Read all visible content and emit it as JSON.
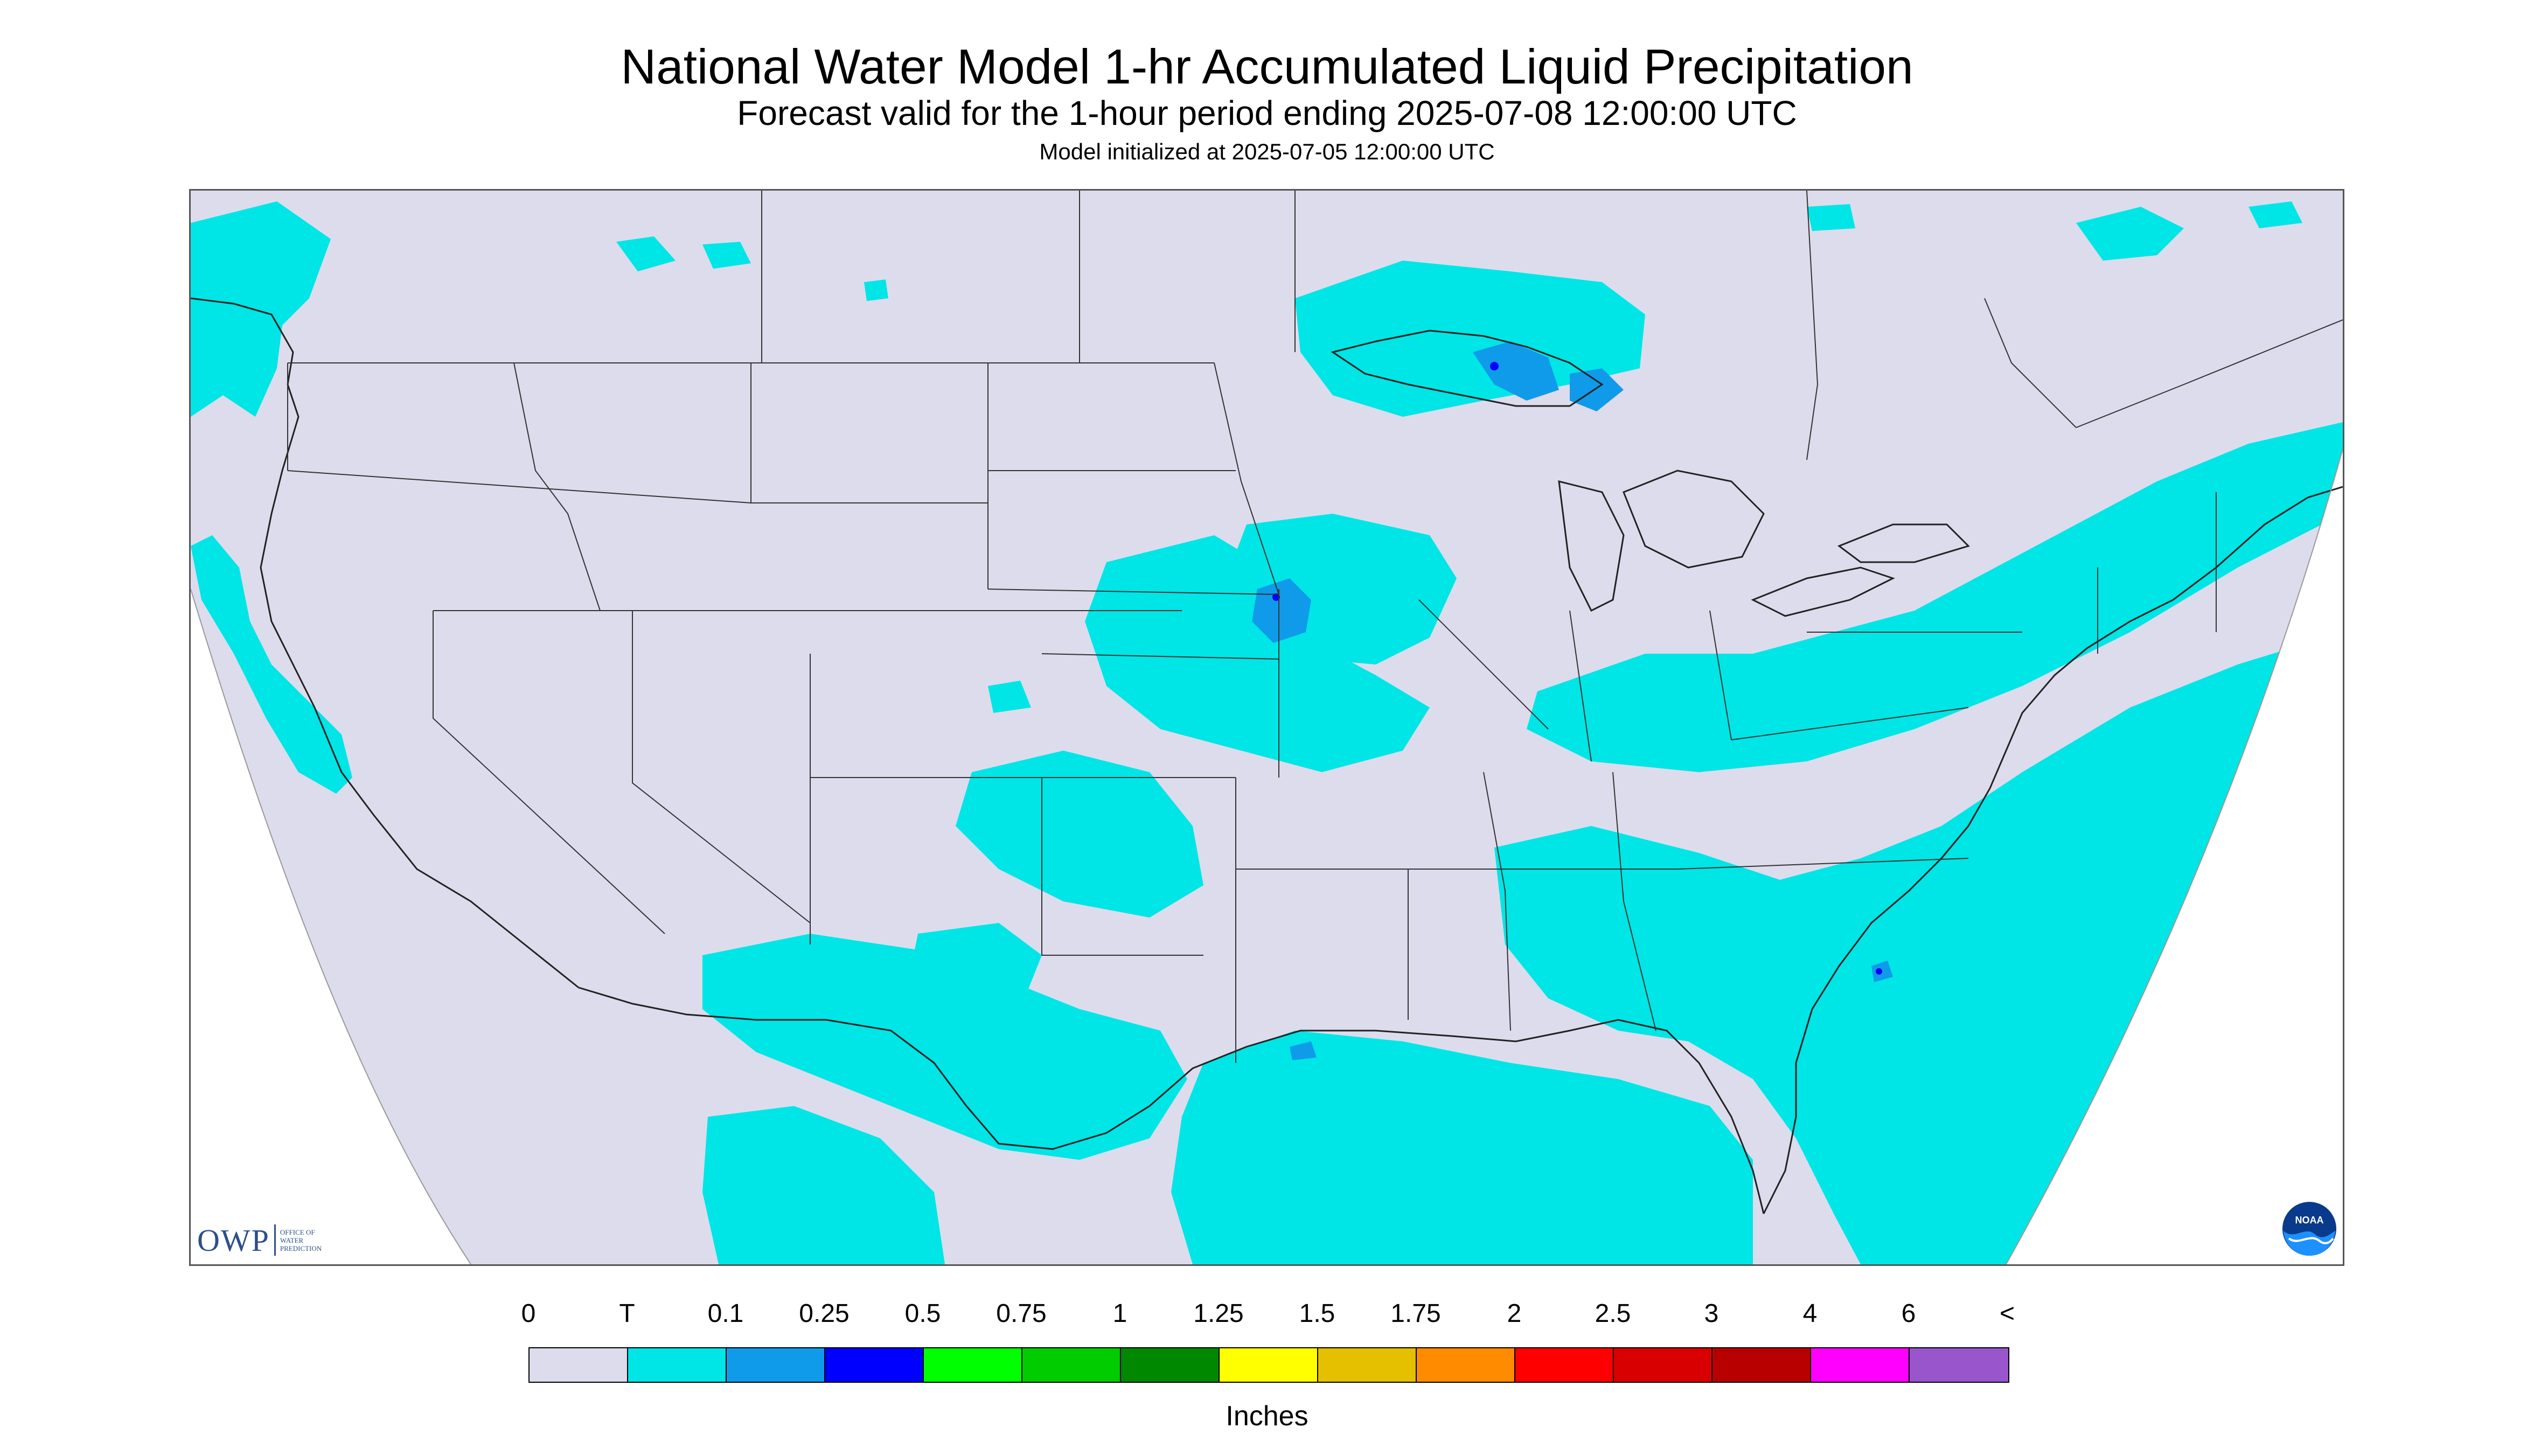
{
  "header": {
    "title": "National Water Model 1-hr Accumulated Liquid Precipitation",
    "subtitle": "Forecast valid for the 1-hour period ending 2025-07-08 12:00:00 UTC",
    "init_line": "Model initialized at 2025-07-05 12:00:00 UTC"
  },
  "logos": {
    "owp": {
      "mark": "OWP",
      "line1": "OFFICE OF",
      "line2": "WATER",
      "line3": "PREDICTION"
    },
    "noaa": {
      "text": "NOAA"
    }
  },
  "legend": {
    "units_label": "Inches",
    "tick_labels": [
      "0",
      "T",
      "0.1",
      "0.25",
      "0.5",
      "0.75",
      "1",
      "1.25",
      "1.5",
      "1.75",
      "2",
      "2.5",
      "3",
      "4",
      "6",
      "<"
    ],
    "bins": [
      {
        "from": "0",
        "to": "T",
        "color": "#dcdced"
      },
      {
        "from": "T",
        "to": "0.1",
        "color": "#00e5e5"
      },
      {
        "from": "0.1",
        "to": "0.25",
        "color": "#0f9bea"
      },
      {
        "from": "0.25",
        "to": "0.5",
        "color": "#0000ff"
      },
      {
        "from": "0.5",
        "to": "0.75",
        "color": "#00ff00"
      },
      {
        "from": "0.75",
        "to": "1",
        "color": "#00cc00"
      },
      {
        "from": "1",
        "to": "1.25",
        "color": "#008800"
      },
      {
        "from": "1.25",
        "to": "1.5",
        "color": "#ffff00"
      },
      {
        "from": "1.5",
        "to": "1.75",
        "color": "#e4c000"
      },
      {
        "from": "1.75",
        "to": "2",
        "color": "#ff8c00"
      },
      {
        "from": "2",
        "to": "2.5",
        "color": "#ff0000"
      },
      {
        "from": "2.5",
        "to": "3",
        "color": "#d80000"
      },
      {
        "from": "3",
        "to": "4",
        "color": "#b80000"
      },
      {
        "from": "4",
        "to": "6",
        "color": "#ff00ff"
      },
      {
        "from": "6",
        "to": "<",
        "color": "#9955cc"
      }
    ]
  },
  "map": {
    "background_color": "#dcdced",
    "land_outline_color": "#222222",
    "precip_regions": [
      {
        "region": "Pacific Northwest coast",
        "category": "T-0.1"
      },
      {
        "region": "Northern California coast",
        "category": "T-0.1"
      },
      {
        "region": "Lake Superior / Minnesota arrowhead",
        "category": "0.1-0.25"
      },
      {
        "region": "Iowa / Minnesota border",
        "category": "0.1-0.25"
      },
      {
        "region": "Central Plains and Midwest",
        "category": "T-0.1"
      },
      {
        "region": "Ohio Valley and Northeast",
        "category": "T-0.1"
      },
      {
        "region": "Southeast and Atlantic offshore",
        "category": "T-0.1"
      },
      {
        "region": "Gulf of Mexico",
        "category": "T-0.1"
      },
      {
        "region": "Texas and northern Mexico",
        "category": "T-0.1"
      },
      {
        "region": "Atlantic off Carolinas",
        "category": "0.1-0.25"
      }
    ]
  }
}
